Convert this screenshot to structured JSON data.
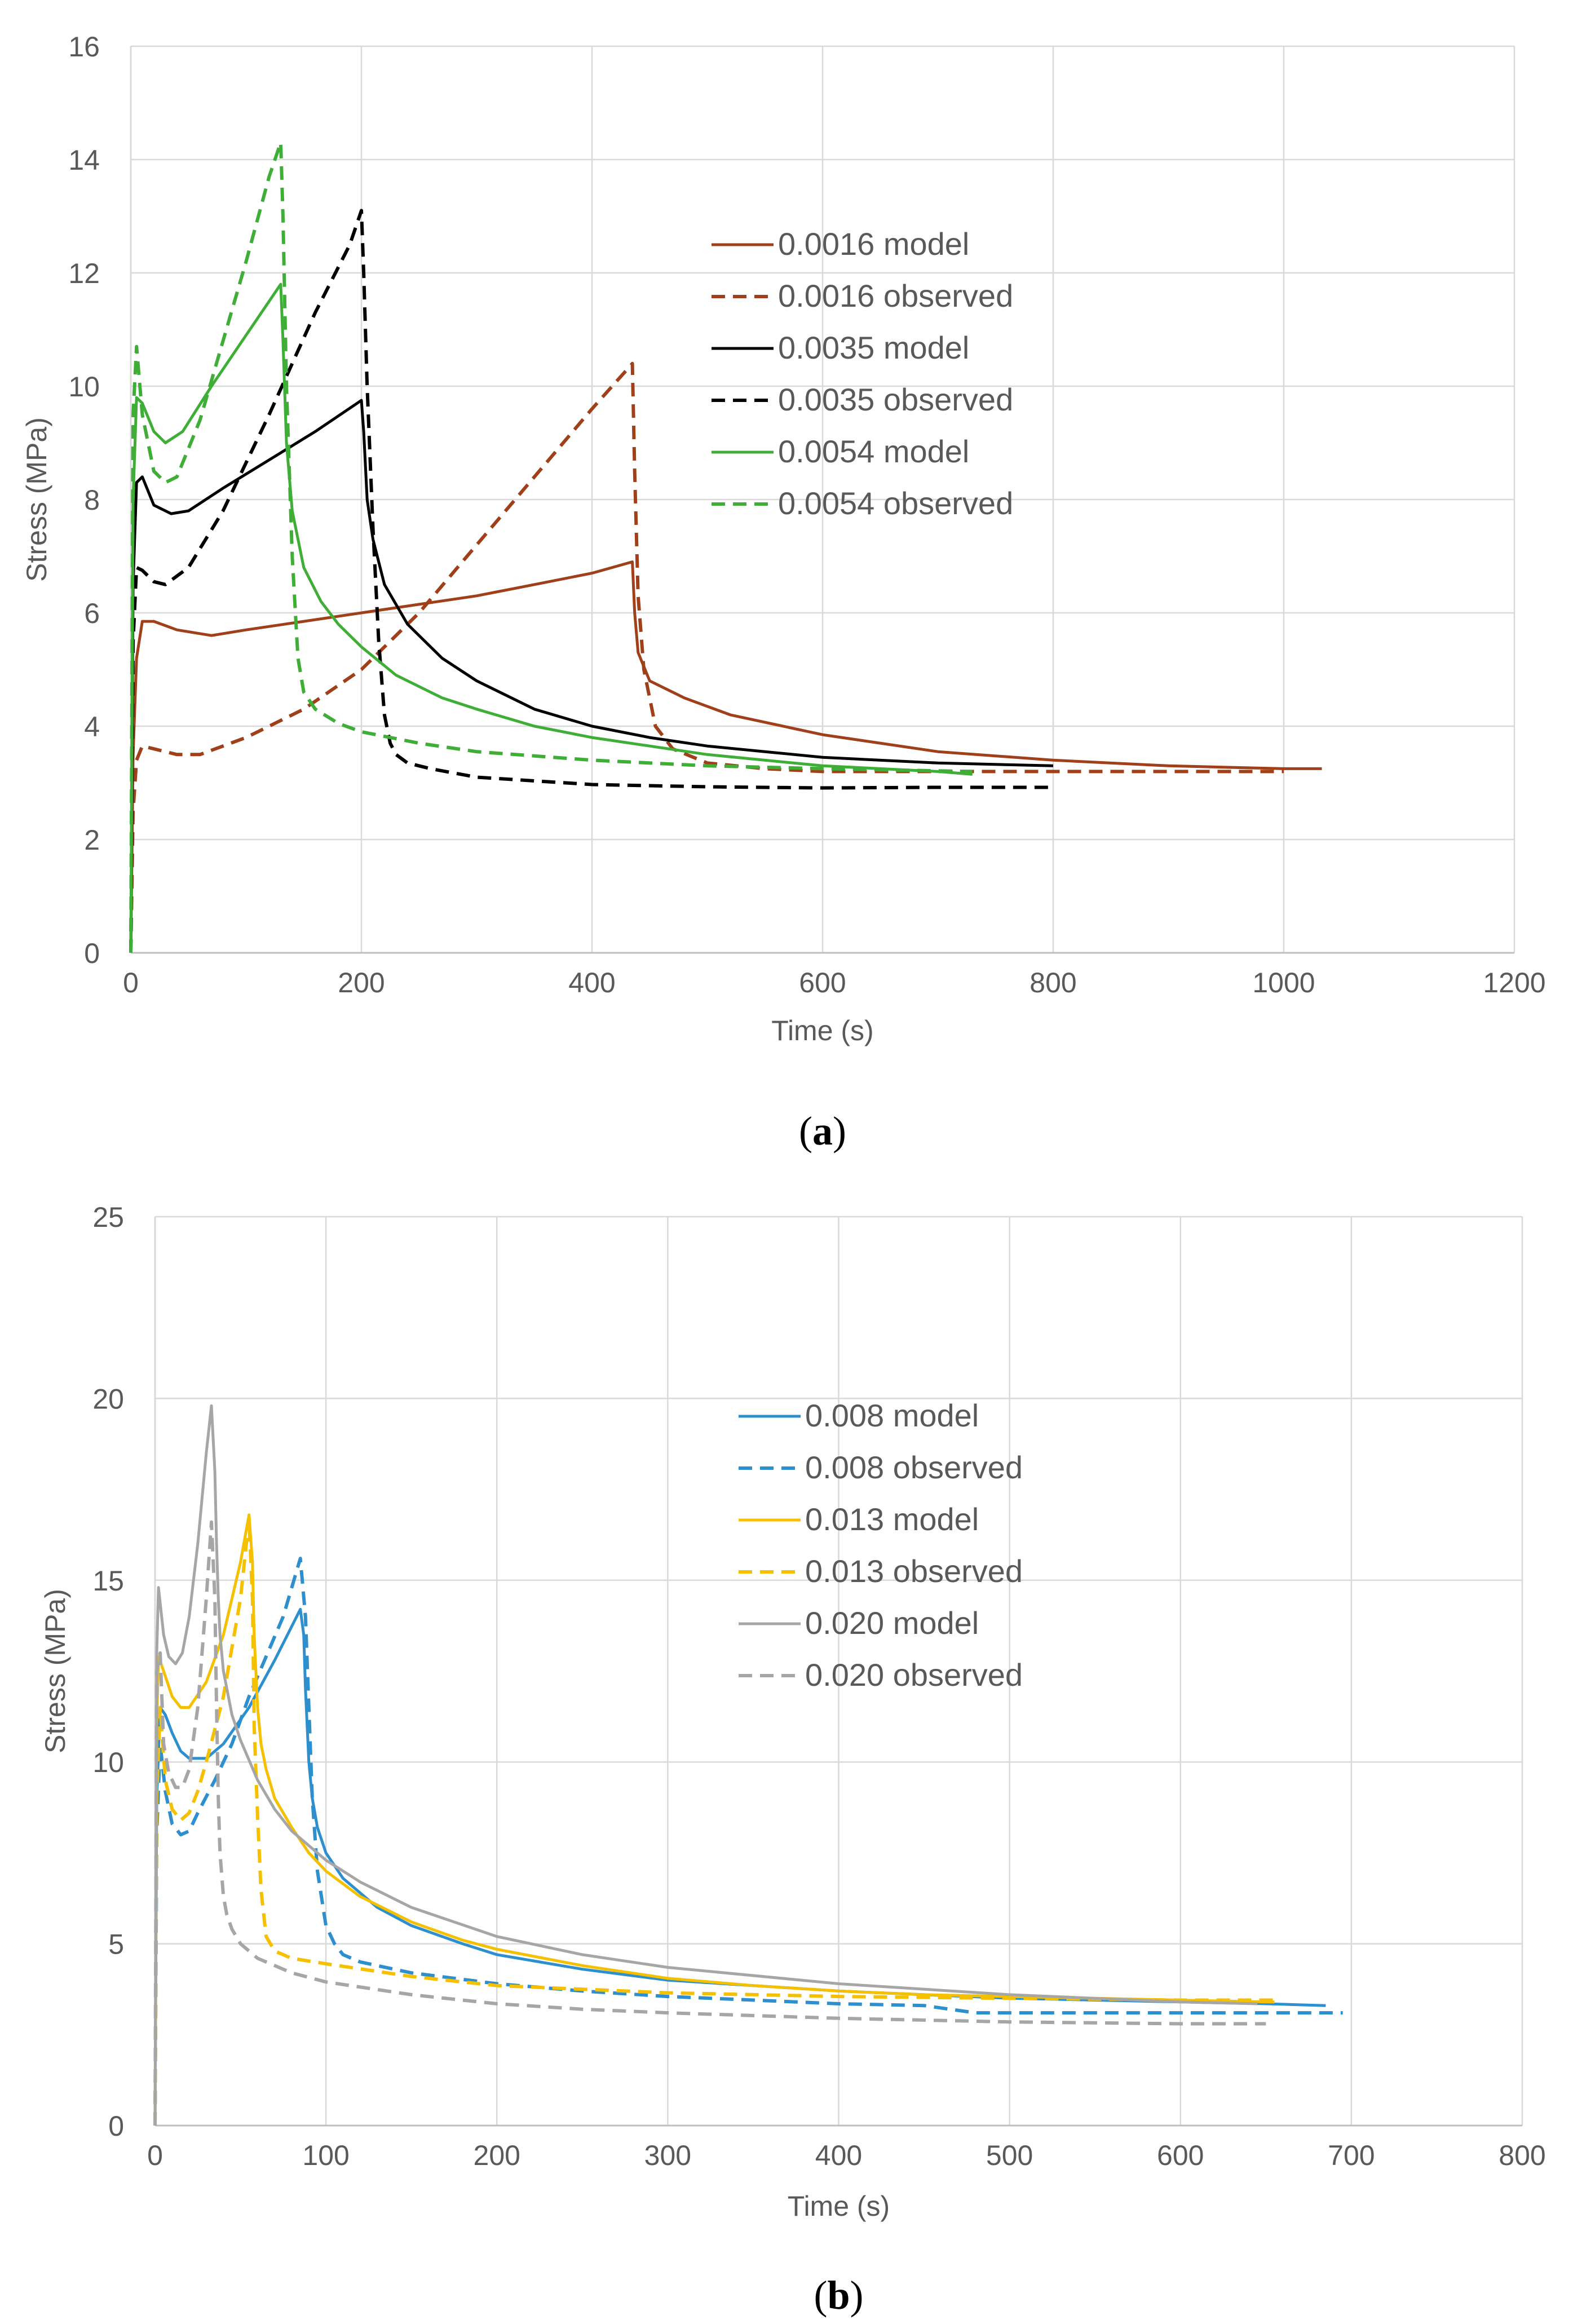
{
  "chart_data": [
    {
      "type": "line",
      "caption": "(a)",
      "caption_letter": "a",
      "xlabel": "Time (s)",
      "ylabel": "Stress (MPa)",
      "xlim": [
        0,
        1200
      ],
      "ylim": [
        0,
        16
      ],
      "xticks": [
        0,
        200,
        400,
        600,
        800,
        1000,
        1200
      ],
      "yticks": [
        0,
        2,
        4,
        6,
        8,
        10,
        12,
        14,
        16
      ],
      "grid": true,
      "legend_position": "upper-middle",
      "series": [
        {
          "name": "0.0016 model",
          "color": "#A0401A",
          "dash": "solid",
          "x": [
            0,
            2,
            5,
            10,
            20,
            40,
            70,
            100,
            150,
            200,
            250,
            300,
            350,
            400,
            435,
            437,
            440,
            450,
            480,
            520,
            600,
            700,
            800,
            900,
            1000,
            1033
          ],
          "y": [
            0,
            3.5,
            5.2,
            5.85,
            5.85,
            5.7,
            5.6,
            5.7,
            5.85,
            6.0,
            6.15,
            6.3,
            6.5,
            6.7,
            6.9,
            6.0,
            5.3,
            4.8,
            4.5,
            4.2,
            3.85,
            3.55,
            3.4,
            3.3,
            3.25,
            3.25
          ]
        },
        {
          "name": "0.0016 observed",
          "color": "#A0401A",
          "dash": "dashed",
          "x": [
            0,
            2,
            5,
            10,
            20,
            40,
            60,
            100,
            150,
            200,
            250,
            300,
            350,
            400,
            435,
            437,
            440,
            445,
            455,
            470,
            500,
            550,
            600,
            700,
            800,
            900,
            1000
          ],
          "y": [
            0,
            2.5,
            3.4,
            3.65,
            3.6,
            3.5,
            3.5,
            3.8,
            4.3,
            5.0,
            6.0,
            7.2,
            8.4,
            9.6,
            10.4,
            8.5,
            6.3,
            5.0,
            4.0,
            3.6,
            3.35,
            3.25,
            3.2,
            3.2,
            3.2,
            3.2,
            3.2
          ]
        },
        {
          "name": "0.0035 model",
          "color": "#000000",
          "dash": "solid",
          "x": [
            0,
            2,
            5,
            10,
            20,
            35,
            50,
            80,
            120,
            160,
            200,
            202,
            205,
            210,
            220,
            240,
            270,
            300,
            350,
            400,
            450,
            500,
            550,
            600,
            700,
            800
          ],
          "y": [
            0,
            6.5,
            8.3,
            8.4,
            7.9,
            7.75,
            7.8,
            8.2,
            8.7,
            9.2,
            9.75,
            9.2,
            8.0,
            7.3,
            6.5,
            5.8,
            5.2,
            4.8,
            4.3,
            4.0,
            3.8,
            3.65,
            3.55,
            3.45,
            3.35,
            3.3
          ]
        },
        {
          "name": "0.0035 observed",
          "color": "#000000",
          "dash": "dashed",
          "x": [
            0,
            2,
            5,
            10,
            20,
            30,
            50,
            80,
            120,
            160,
            190,
            200,
            202,
            205,
            210,
            215,
            220,
            225,
            230,
            240,
            260,
            300,
            400,
            500,
            600,
            700,
            800
          ],
          "y": [
            0,
            5.5,
            6.8,
            6.75,
            6.55,
            6.5,
            6.8,
            7.8,
            9.5,
            11.3,
            12.5,
            13.1,
            12.0,
            10.0,
            7.5,
            5.5,
            4.2,
            3.7,
            3.5,
            3.35,
            3.25,
            3.1,
            2.97,
            2.93,
            2.91,
            2.92,
            2.92
          ]
        },
        {
          "name": "0.0054 model",
          "color": "#3EAE37",
          "dash": "solid",
          "x": [
            0,
            2,
            5,
            10,
            20,
            30,
            45,
            70,
            100,
            130,
            132,
            135,
            140,
            150,
            165,
            180,
            200,
            230,
            270,
            300,
            350,
            400,
            450,
            500,
            600,
            700,
            730
          ],
          "y": [
            0,
            8.0,
            9.8,
            9.7,
            9.2,
            9.0,
            9.2,
            10.0,
            10.9,
            11.8,
            10.8,
            9.0,
            7.8,
            6.8,
            6.2,
            5.8,
            5.4,
            4.9,
            4.5,
            4.3,
            4.0,
            3.8,
            3.65,
            3.5,
            3.3,
            3.2,
            3.15
          ]
        },
        {
          "name": "0.0054 observed",
          "color": "#3EAE37",
          "dash": "dashed",
          "x": [
            0,
            2,
            5,
            10,
            20,
            30,
            40,
            60,
            80,
            100,
            120,
            130,
            132,
            135,
            140,
            145,
            150,
            160,
            180,
            200,
            250,
            300,
            400,
            500,
            600,
            730
          ],
          "y": [
            0,
            9.5,
            10.7,
            9.5,
            8.5,
            8.3,
            8.4,
            9.4,
            10.8,
            12.2,
            13.7,
            14.3,
            13.0,
            10.0,
            7.0,
            5.2,
            4.6,
            4.3,
            4.05,
            3.9,
            3.7,
            3.55,
            3.4,
            3.3,
            3.25,
            3.2
          ]
        }
      ]
    },
    {
      "type": "line",
      "caption": "(b)",
      "caption_letter": "b",
      "xlabel": "Time (s)",
      "ylabel": "Stress (MPa)",
      "xlim": [
        0,
        800
      ],
      "ylim": [
        0,
        25
      ],
      "xticks": [
        0,
        100,
        200,
        300,
        400,
        500,
        600,
        700,
        800
      ],
      "yticks": [
        0,
        5,
        10,
        15,
        20,
        25
      ],
      "grid": true,
      "legend_position": "upper-middle",
      "series": [
        {
          "name": "0.008 model",
          "color": "#2E8FCF",
          "dash": "solid",
          "x": [
            0,
            1,
            3,
            6,
            10,
            15,
            20,
            30,
            40,
            55,
            70,
            85,
            87,
            88,
            90,
            92,
            95,
            100,
            110,
            130,
            150,
            180,
            200,
            250,
            300,
            350,
            400,
            450,
            500,
            550,
            600,
            650,
            685
          ],
          "y": [
            0,
            9.0,
            11.5,
            11.3,
            10.8,
            10.3,
            10.1,
            10.1,
            10.5,
            11.5,
            12.8,
            14.2,
            13.5,
            12.0,
            10.0,
            9.0,
            8.2,
            7.5,
            6.8,
            6.0,
            5.5,
            5.0,
            4.7,
            4.3,
            4.0,
            3.85,
            3.7,
            3.6,
            3.5,
            3.45,
            3.4,
            3.35,
            3.3
          ]
        },
        {
          "name": "0.008 observed",
          "color": "#2E8FCF",
          "dash": "dashed",
          "x": [
            0,
            1,
            3,
            6,
            10,
            15,
            20,
            25,
            35,
            45,
            55,
            65,
            75,
            85,
            88,
            90,
            92,
            95,
            100,
            105,
            110,
            115,
            120,
            125,
            130,
            150,
            200,
            250,
            300,
            350,
            400,
            450,
            480,
            500,
            600,
            695
          ],
          "y": [
            0,
            8.0,
            10.5,
            9.2,
            8.3,
            8.0,
            8.1,
            8.6,
            9.5,
            10.5,
            11.8,
            12.9,
            14.0,
            15.6,
            14.0,
            11.5,
            9.0,
            7.0,
            5.5,
            5.0,
            4.7,
            4.6,
            4.5,
            4.45,
            4.4,
            4.2,
            3.9,
            3.7,
            3.55,
            3.45,
            3.35,
            3.3,
            3.1,
            3.1,
            3.1,
            3.1
          ]
        },
        {
          "name": "0.013 model",
          "color": "#F5C000",
          "dash": "solid",
          "x": [
            0,
            1,
            2,
            5,
            10,
            15,
            20,
            30,
            40,
            50,
            55,
            57,
            58,
            60,
            62,
            65,
            70,
            80,
            90,
            100,
            120,
            150,
            180,
            200,
            250,
            300,
            350,
            400,
            450,
            500,
            550,
            600,
            650,
            655
          ],
          "y": [
            0,
            11.0,
            12.9,
            12.5,
            11.8,
            11.5,
            11.5,
            12.2,
            13.5,
            15.5,
            16.8,
            15.5,
            13.5,
            11.5,
            10.5,
            9.8,
            9.0,
            8.2,
            7.5,
            7.0,
            6.3,
            5.6,
            5.1,
            4.85,
            4.4,
            4.05,
            3.85,
            3.7,
            3.6,
            3.55,
            3.5,
            3.45,
            3.4,
            3.4
          ]
        },
        {
          "name": "0.013 observed",
          "color": "#F5C000",
          "dash": "dashed",
          "x": [
            0,
            1,
            3,
            6,
            10,
            15,
            20,
            25,
            30,
            40,
            50,
            55,
            57,
            58,
            60,
            62,
            65,
            70,
            80,
            100,
            150,
            200,
            250,
            300,
            400,
            500,
            600,
            655
          ],
          "y": [
            0,
            9.0,
            11.5,
            9.5,
            8.7,
            8.4,
            8.6,
            9.2,
            10.0,
            11.8,
            14.5,
            16.7,
            14.5,
            11.0,
            8.5,
            6.5,
            5.2,
            4.8,
            4.6,
            4.45,
            4.1,
            3.85,
            3.75,
            3.65,
            3.55,
            3.5,
            3.45,
            3.45
          ]
        },
        {
          "name": "0.020 model",
          "color": "#A6A6A6",
          "dash": "solid",
          "x": [
            0,
            1,
            2,
            5,
            8,
            12,
            16,
            20,
            25,
            30,
            33,
            35,
            36,
            37,
            38,
            40,
            45,
            50,
            60,
            70,
            80,
            100,
            120,
            150,
            200,
            250,
            300,
            400,
            500,
            600,
            645
          ],
          "y": [
            0,
            13.0,
            14.8,
            13.5,
            12.9,
            12.7,
            13.0,
            14.0,
            16.0,
            18.5,
            19.8,
            18.0,
            16.0,
            14.5,
            13.5,
            12.5,
            11.3,
            10.6,
            9.5,
            8.7,
            8.1,
            7.3,
            6.7,
            6.0,
            5.2,
            4.7,
            4.35,
            3.9,
            3.6,
            3.4,
            3.35
          ]
        },
        {
          "name": "0.020 observed",
          "color": "#A6A6A6",
          "dash": "dashed",
          "x": [
            0,
            1,
            3,
            5,
            8,
            12,
            16,
            20,
            25,
            30,
            33,
            35,
            36,
            37,
            38,
            40,
            42,
            45,
            50,
            60,
            80,
            100,
            150,
            200,
            250,
            300,
            400,
            500,
            600,
            650
          ],
          "y": [
            0,
            12.5,
            13.0,
            10.5,
            9.7,
            9.3,
            9.3,
            9.8,
            11.5,
            14.5,
            16.6,
            14.5,
            11.5,
            9.0,
            7.5,
            6.3,
            5.8,
            5.4,
            5.0,
            4.6,
            4.2,
            3.95,
            3.6,
            3.35,
            3.2,
            3.1,
            2.95,
            2.85,
            2.8,
            2.8
          ]
        }
      ]
    }
  ]
}
